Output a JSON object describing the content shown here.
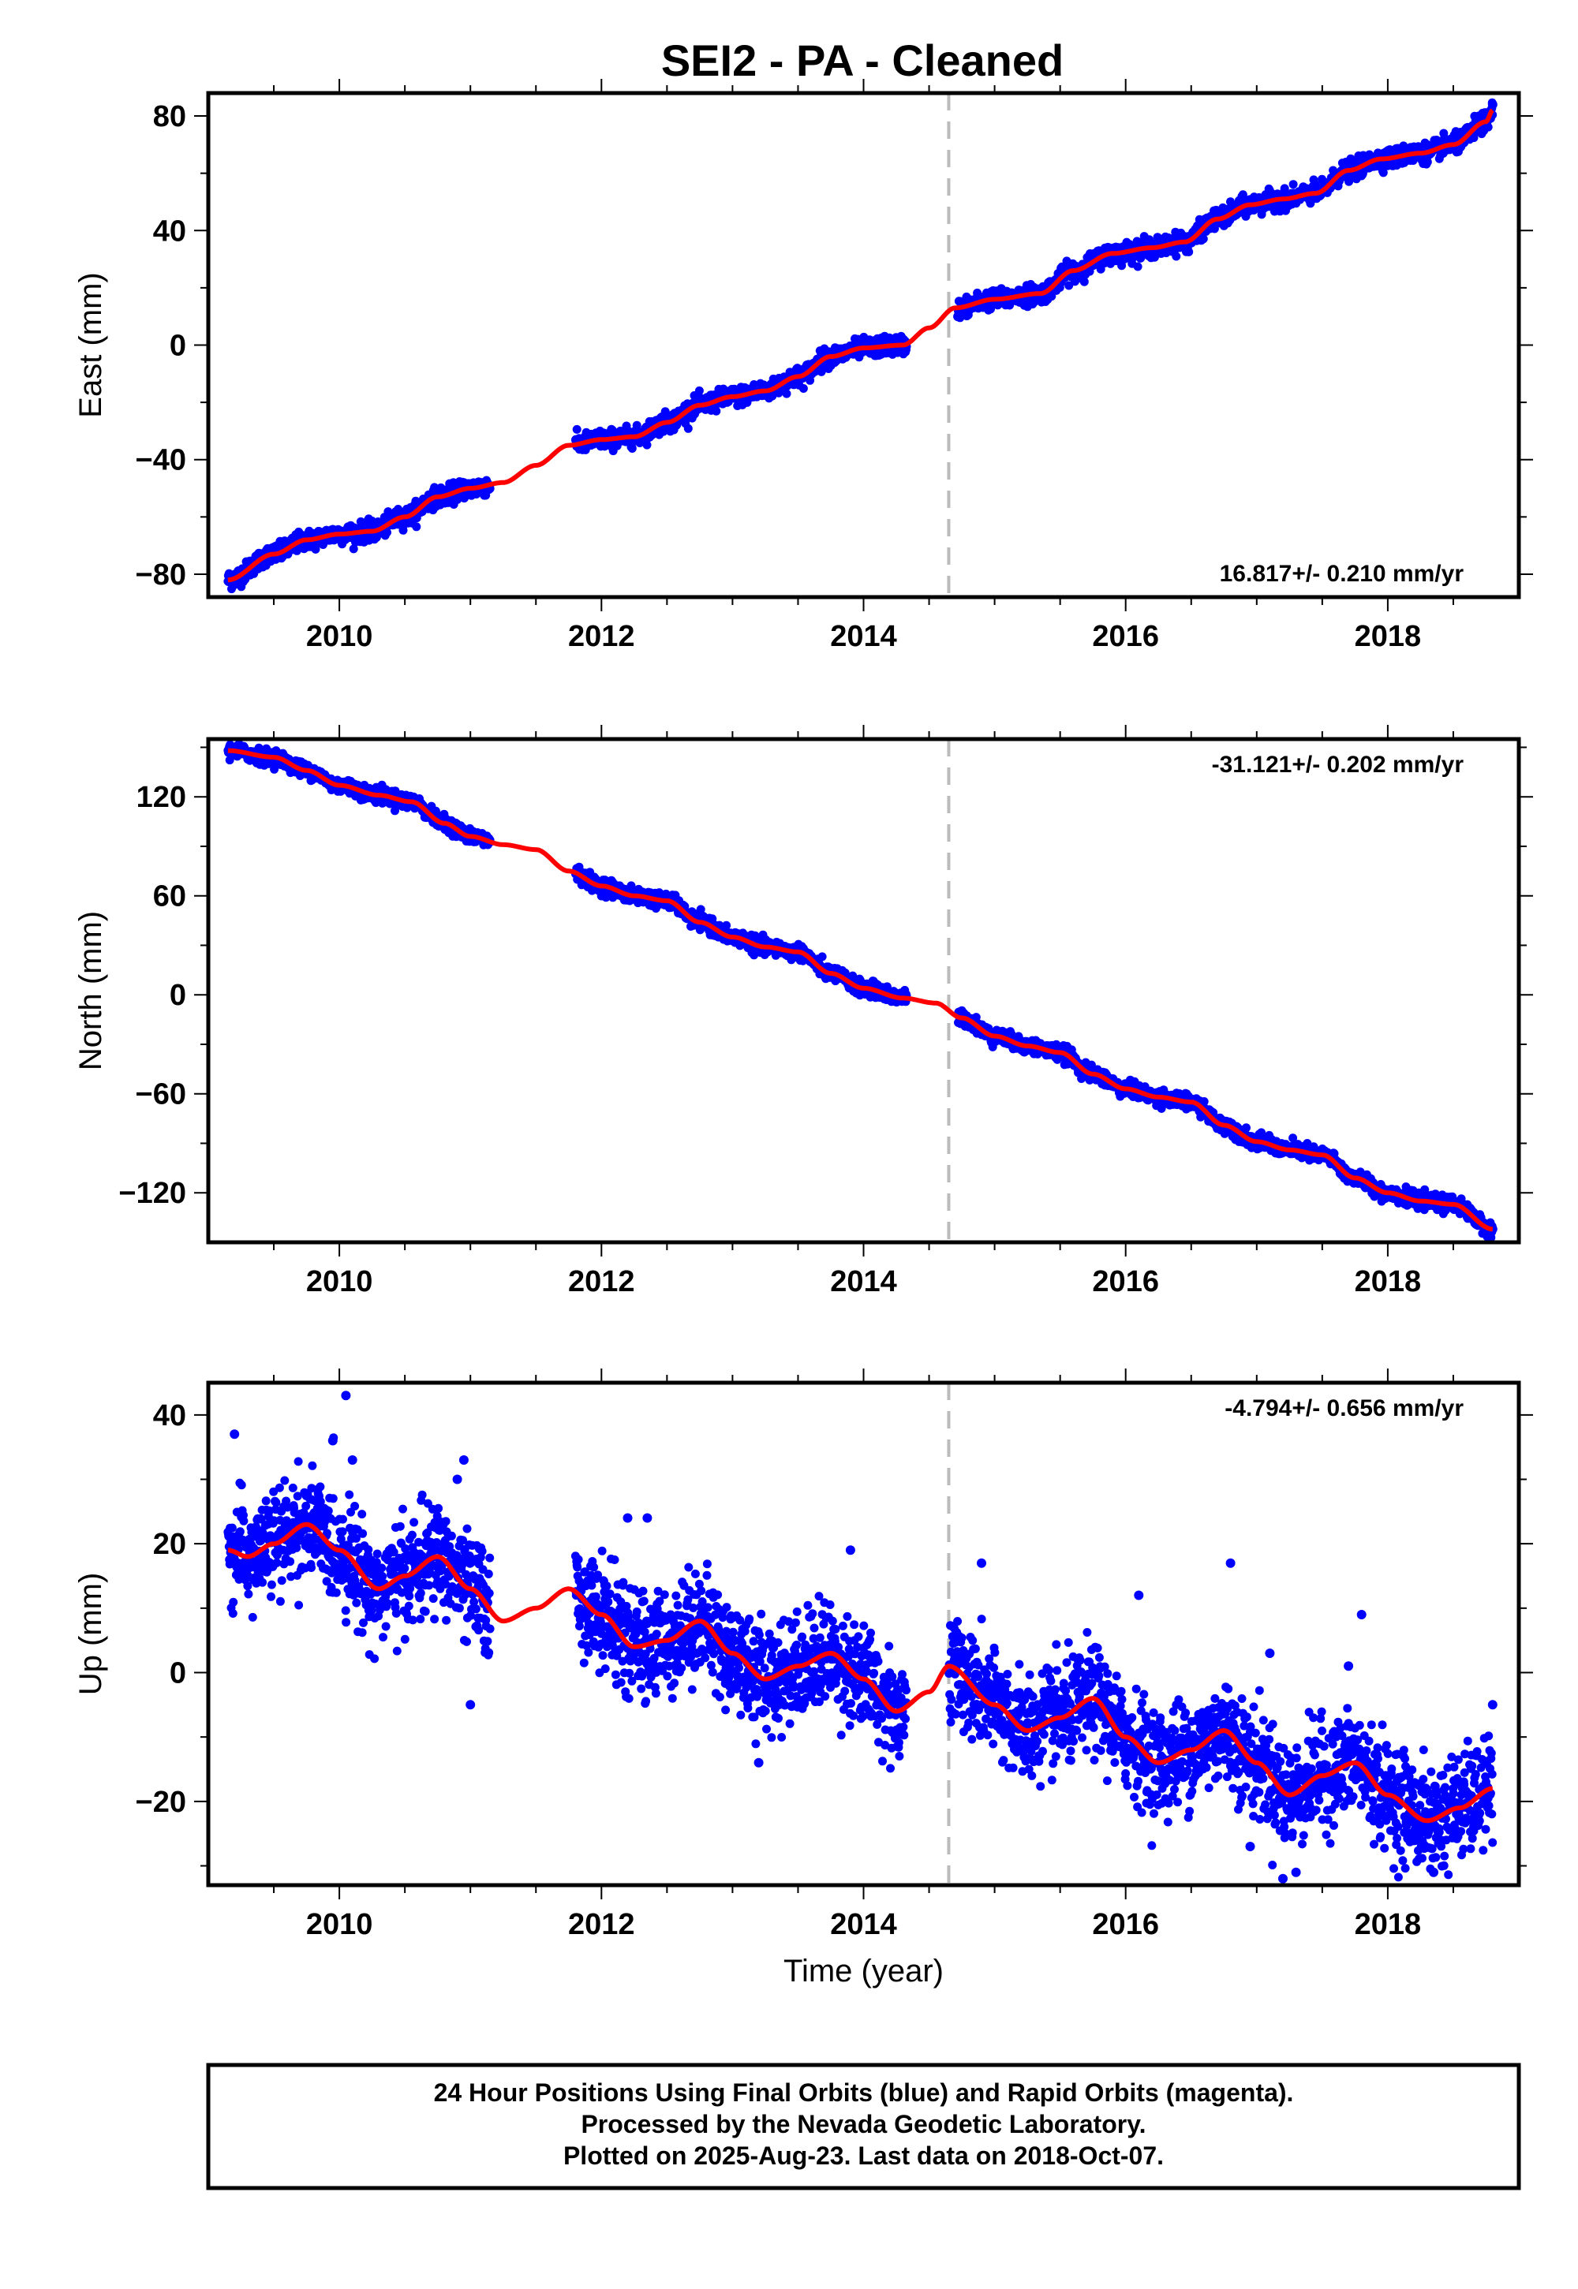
{
  "chart_data": {
    "type": "scatter",
    "title": "SEI2  - PA - Cleaned",
    "xlabel": "Time (year)",
    "xlim": [
      2009.0,
      2019.0
    ],
    "x_ticks": [
      2010,
      2012,
      2014,
      2016,
      2018
    ],
    "break_line_x": 2014.65,
    "colors": {
      "final_orbits": "#0000ff",
      "model_fit": "#ff0000",
      "break_line": "#bbbbbb"
    },
    "panels": [
      {
        "name": "east",
        "ylabel": "East (mm)",
        "ylim": [
          -88,
          88
        ],
        "y_ticks": [
          80,
          40,
          0,
          -40,
          -80
        ],
        "y_tick_labels": [
          "80",
          "40",
          "0",
          "−40",
          "−80"
        ],
        "rate_label": "16.817+/- 0.210 mm/yr",
        "rate_position": "bottom-right",
        "fit_points": [
          [
            2009.15,
            -82
          ],
          [
            2009.5,
            -73
          ],
          [
            2009.75,
            -68
          ],
          [
            2010.0,
            -66
          ],
          [
            2010.25,
            -65
          ],
          [
            2010.5,
            -60
          ],
          [
            2010.75,
            -53
          ],
          [
            2011.0,
            -50
          ],
          [
            2011.25,
            -48
          ],
          [
            2011.5,
            -42
          ],
          [
            2011.75,
            -35
          ],
          [
            2012.0,
            -33
          ],
          [
            2012.25,
            -32
          ],
          [
            2012.5,
            -27
          ],
          [
            2012.75,
            -21
          ],
          [
            2013.0,
            -18
          ],
          [
            2013.25,
            -16
          ],
          [
            2013.5,
            -11
          ],
          [
            2013.75,
            -4
          ],
          [
            2014.0,
            -1
          ],
          [
            2014.3,
            0
          ],
          [
            2014.5,
            6
          ],
          [
            2014.7,
            13
          ],
          [
            2015.0,
            16
          ],
          [
            2015.35,
            18
          ],
          [
            2015.6,
            26
          ],
          [
            2015.9,
            32
          ],
          [
            2016.2,
            34
          ],
          [
            2016.45,
            36
          ],
          [
            2016.7,
            44
          ],
          [
            2016.95,
            49
          ],
          [
            2017.2,
            51
          ],
          [
            2017.45,
            53
          ],
          [
            2017.7,
            61
          ],
          [
            2017.95,
            65
          ],
          [
            2018.25,
            67
          ],
          [
            2018.5,
            70
          ],
          [
            2018.75,
            78
          ],
          [
            2018.8,
            82
          ]
        ],
        "gaps": [
          [
            2011.15,
            2011.8
          ],
          [
            2014.33,
            2014.72
          ]
        ],
        "noise_mm": 1.6,
        "outliers": [
          [
            2018.8,
            84
          ],
          [
            2009.22,
            -83
          ],
          [
            2014.72,
            10
          ]
        ]
      },
      {
        "name": "north",
        "ylabel": "North (mm)",
        "ylim": [
          -150,
          155
        ],
        "y_ticks": [
          120,
          60,
          0,
          -60,
          -120
        ],
        "y_tick_labels": [
          "120",
          "60",
          "0",
          "−60",
          "−120"
        ],
        "rate_label": "-31.121+/- 0.202 mm/yr",
        "rate_position": "top-right",
        "fit_points": [
          [
            2009.15,
            148
          ],
          [
            2009.5,
            144
          ],
          [
            2009.75,
            136
          ],
          [
            2010.0,
            127
          ],
          [
            2010.3,
            121
          ],
          [
            2010.55,
            117
          ],
          [
            2010.8,
            104
          ],
          [
            2011.0,
            96
          ],
          [
            2011.25,
            91
          ],
          [
            2011.5,
            88
          ],
          [
            2011.75,
            75
          ],
          [
            2012.0,
            66
          ],
          [
            2012.25,
            60
          ],
          [
            2012.5,
            57
          ],
          [
            2012.75,
            44
          ],
          [
            2013.0,
            35
          ],
          [
            2013.25,
            29
          ],
          [
            2013.5,
            26
          ],
          [
            2013.75,
            13
          ],
          [
            2014.0,
            4
          ],
          [
            2014.3,
            -2
          ],
          [
            2014.55,
            -5
          ],
          [
            2014.75,
            -14
          ],
          [
            2015.0,
            -25
          ],
          [
            2015.25,
            -31
          ],
          [
            2015.5,
            -35
          ],
          [
            2015.75,
            -48
          ],
          [
            2016.0,
            -57
          ],
          [
            2016.25,
            -62
          ],
          [
            2016.5,
            -65
          ],
          [
            2016.75,
            -79
          ],
          [
            2017.0,
            -89
          ],
          [
            2017.25,
            -94
          ],
          [
            2017.5,
            -97
          ],
          [
            2017.75,
            -111
          ],
          [
            2018.0,
            -120
          ],
          [
            2018.25,
            -125
          ],
          [
            2018.5,
            -127
          ],
          [
            2018.8,
            -142
          ]
        ],
        "gaps": [
          [
            2011.15,
            2011.8
          ],
          [
            2014.33,
            2014.72
          ]
        ],
        "noise_mm": 2.2,
        "outliers": [
          [
            2018.8,
            -142
          ],
          [
            2009.2,
            149
          ]
        ]
      },
      {
        "name": "up",
        "ylabel": "Up (mm)",
        "ylim": [
          -33,
          45
        ],
        "y_ticks": [
          40,
          20,
          0,
          -20
        ],
        "y_tick_labels": [
          "40",
          "20",
          "0",
          "−20"
        ],
        "rate_label": "-4.794+/- 0.656 mm/yr",
        "rate_position": "top-right",
        "fit_points": [
          [
            2009.15,
            19
          ],
          [
            2009.3,
            18
          ],
          [
            2009.5,
            20
          ],
          [
            2009.75,
            23
          ],
          [
            2010.0,
            19
          ],
          [
            2010.3,
            13
          ],
          [
            2010.5,
            15
          ],
          [
            2010.75,
            18
          ],
          [
            2011.0,
            13
          ],
          [
            2011.25,
            8
          ],
          [
            2011.5,
            10
          ],
          [
            2011.75,
            13
          ],
          [
            2012.0,
            9
          ],
          [
            2012.25,
            4
          ],
          [
            2012.5,
            5
          ],
          [
            2012.75,
            8
          ],
          [
            2013.0,
            3
          ],
          [
            2013.25,
            -1
          ],
          [
            2013.5,
            1
          ],
          [
            2013.75,
            3
          ],
          [
            2014.0,
            -1
          ],
          [
            2014.25,
            -6
          ],
          [
            2014.5,
            -3
          ],
          [
            2014.65,
            1
          ],
          [
            2015.0,
            -5
          ],
          [
            2015.25,
            -9
          ],
          [
            2015.5,
            -7
          ],
          [
            2015.75,
            -4
          ],
          [
            2016.0,
            -10
          ],
          [
            2016.25,
            -14
          ],
          [
            2016.5,
            -12
          ],
          [
            2016.75,
            -9
          ],
          [
            2017.0,
            -14
          ],
          [
            2017.25,
            -19
          ],
          [
            2017.5,
            -16
          ],
          [
            2017.75,
            -14
          ],
          [
            2018.0,
            -19
          ],
          [
            2018.3,
            -23
          ],
          [
            2018.55,
            -21
          ],
          [
            2018.8,
            -18
          ]
        ],
        "gaps": [
          [
            2011.15,
            2011.8
          ],
          [
            2014.33,
            2014.65
          ]
        ],
        "noise_mm": 4.0,
        "outliers": [
          [
            2010.05,
            43
          ],
          [
            2009.2,
            37
          ],
          [
            2009.95,
            36
          ],
          [
            2010.1,
            33
          ],
          [
            2010.95,
            33
          ],
          [
            2010.9,
            30
          ],
          [
            2012.2,
            24
          ],
          [
            2012.35,
            24
          ],
          [
            2013.9,
            19
          ],
          [
            2014.9,
            17
          ],
          [
            2016.8,
            17
          ],
          [
            2016.1,
            12
          ],
          [
            2017.8,
            9
          ],
          [
            2018.8,
            -5
          ],
          [
            2011.0,
            -5
          ],
          [
            2013.2,
            -14
          ],
          [
            2017.3,
            -31
          ],
          [
            2017.2,
            -32
          ],
          [
            2018.35,
            -31
          ],
          [
            2016.95,
            -27
          ],
          [
            2017.7,
            1
          ],
          [
            2017.1,
            3
          ]
        ]
      }
    ],
    "footer": {
      "lines": [
        "24 Hour Positions Using Final Orbits (blue) and Rapid Orbits (magenta).",
        "Processed by the Nevada Geodetic Laboratory.",
        "Plotted on 2025-Aug-23. Last data on 2018-Oct-07."
      ]
    }
  }
}
